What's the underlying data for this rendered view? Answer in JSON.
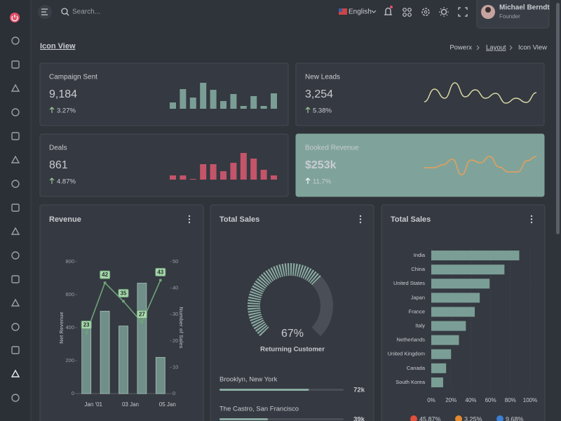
{
  "header": {
    "search_placeholder": "Search...",
    "language": "English",
    "user": {
      "name": "Michael Berndt",
      "role": "Founder"
    }
  },
  "page": {
    "title": "Icon View",
    "breadcrumb": [
      "Powerx",
      "Layout",
      "Icon View"
    ]
  },
  "stats": [
    {
      "title": "Campaign Sent",
      "value": "9,184",
      "change": "3.27%",
      "chart": {
        "type": "bar",
        "color": "#7a9e95",
        "values": [
          9,
          28,
          16,
          37,
          27,
          11,
          21,
          4,
          18,
          4,
          22
        ]
      }
    },
    {
      "title": "New Leads",
      "value": "3,254",
      "change": "5.38%",
      "chart": {
        "type": "line",
        "color": "#d8d9a4",
        "values": [
          5,
          23,
          10,
          32,
          12,
          22,
          10,
          17,
          3,
          10,
          4,
          18
        ]
      }
    },
    {
      "title": "Deals",
      "value": "861",
      "change": "4.87%",
      "chart": {
        "type": "bar",
        "color": "#c45469",
        "values": [
          6,
          6,
          1,
          22,
          22,
          12,
          24,
          38,
          30,
          14,
          6
        ]
      }
    },
    {
      "title": "Booked Revenue",
      "value": "$253k",
      "change": "11.7%",
      "chart": {
        "type": "line",
        "color": "#e8a05a",
        "values": [
          12,
          12,
          16,
          24,
          2,
          23,
          19,
          28,
          13,
          6,
          6,
          22,
          28
        ]
      }
    }
  ],
  "revenue_chart": {
    "type": "bar-line",
    "title": "Revenue",
    "categories": [
      "Jan '01",
      null,
      "03 Jan",
      null,
      "05 Jan"
    ],
    "series": [
      {
        "color": "#6f8f88",
        "values": [
          440,
          500,
          410,
          670,
          220
        ]
      },
      {
        "color": "#6fa37a",
        "axis": "y2",
        "values": [
          23,
          42,
          35,
          27,
          43
        ]
      }
    ],
    "ylabel": "Net Revenue",
    "y2label": "Number of Sales",
    "ylim": [
      0,
      800
    ],
    "yticks": [
      0,
      200,
      400,
      600,
      800
    ],
    "y2lim": [
      0,
      50
    ],
    "y2ticks": [
      0,
      10,
      20,
      30,
      40,
      50
    ]
  },
  "sales_gauge": {
    "type": "radial",
    "title": "Total Sales",
    "value": 67,
    "value_label": "67%",
    "label": "Returning Customer",
    "color": "#8aaba2",
    "locations": {
      "names": [
        "Brooklyn, New York",
        "The Castro, San Francisco"
      ],
      "values": [
        72,
        39
      ],
      "value_labels": [
        "72k",
        "39k"
      ],
      "xlim": [
        0,
        100
      ]
    }
  },
  "sales_bars": {
    "type": "hbar",
    "title": "Total Sales",
    "categories": [
      "India",
      "China",
      "United States",
      "Japan",
      "France",
      "Italy",
      "Netherlands",
      "United Kingdom",
      "Canada",
      "South Korea"
    ],
    "values": [
      89,
      74,
      59,
      49,
      44,
      35,
      28,
      20,
      15,
      12
    ],
    "color": "#7a9e95",
    "xlim": [
      0,
      100
    ],
    "xticks": [
      {
        "value": 0,
        "label": "0%"
      },
      {
        "value": 20,
        "label": "20%"
      },
      {
        "value": 40,
        "label": "40%"
      },
      {
        "value": 60,
        "label": "60%"
      },
      {
        "value": 80,
        "label": "80%"
      },
      {
        "value": 100,
        "label": "100%"
      }
    ],
    "shares": [
      "45.87%",
      "3.25%",
      "9.68%"
    ]
  }
}
